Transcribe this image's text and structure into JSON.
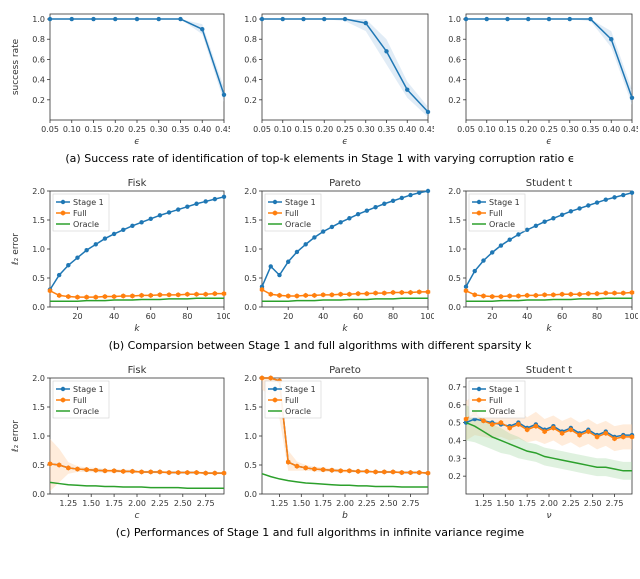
{
  "colors": {
    "line_blue": "#1f77b4",
    "line_orange": "#ff7f0e",
    "line_green": "#2ca02c",
    "fill_blue": "#a8c8e4",
    "fill_orange": "#ffc999",
    "fill_green": "#a3d8a3",
    "axis": "#333333",
    "tick_text": "#333333",
    "bg": "#ffffff"
  },
  "typography": {
    "tick_fontsize": 8,
    "label_fontsize": 9,
    "title_fontsize": 10,
    "caption_fontsize": 11
  },
  "row_a": {
    "caption": "(a) Success rate of identification of top-k elements in Stage 1 with varying corruption ratio ϵ",
    "ylabel": "success rate",
    "xlabel": "ϵ",
    "xlim": [
      0.05,
      0.45
    ],
    "ylim": [
      0.0,
      1.05
    ],
    "xticks": [
      0.05,
      0.1,
      0.15,
      0.2,
      0.25,
      0.3,
      0.35,
      0.4,
      0.45
    ],
    "yticks": [
      0.2,
      0.4,
      0.6,
      0.8,
      1.0
    ],
    "panels": [
      {
        "x": [
          0.05,
          0.1,
          0.15,
          0.2,
          0.25,
          0.3,
          0.35,
          0.4,
          0.45
        ],
        "y": [
          1.0,
          1.0,
          1.0,
          1.0,
          1.0,
          1.0,
          1.0,
          0.9,
          0.25
        ],
        "band_lo": [
          1.0,
          1.0,
          1.0,
          1.0,
          1.0,
          1.0,
          1.0,
          0.85,
          0.18
        ],
        "band_hi": [
          1.0,
          1.0,
          1.0,
          1.0,
          1.0,
          1.0,
          1.0,
          0.95,
          0.32
        ]
      },
      {
        "x": [
          0.05,
          0.1,
          0.15,
          0.2,
          0.25,
          0.3,
          0.35,
          0.4,
          0.45
        ],
        "y": [
          1.0,
          1.0,
          1.0,
          1.0,
          1.0,
          0.96,
          0.68,
          0.3,
          0.08
        ],
        "band_lo": [
          1.0,
          1.0,
          1.0,
          1.0,
          0.98,
          0.88,
          0.55,
          0.22,
          0.03
        ],
        "band_hi": [
          1.0,
          1.0,
          1.0,
          1.0,
          1.0,
          1.0,
          0.8,
          0.38,
          0.13
        ]
      },
      {
        "x": [
          0.05,
          0.1,
          0.15,
          0.2,
          0.25,
          0.3,
          0.35,
          0.4,
          0.45
        ],
        "y": [
          1.0,
          1.0,
          1.0,
          1.0,
          1.0,
          1.0,
          1.0,
          0.8,
          0.22
        ],
        "band_lo": [
          1.0,
          1.0,
          1.0,
          1.0,
          1.0,
          1.0,
          0.98,
          0.72,
          0.15
        ],
        "band_hi": [
          1.0,
          1.0,
          1.0,
          1.0,
          1.0,
          1.0,
          1.0,
          0.88,
          0.3
        ]
      }
    ]
  },
  "row_b": {
    "caption": "(b) Comparsion between Stage 1 and full algorithms with different sparsity k",
    "ylabel": "ℓ₂ error",
    "xlabel": "k",
    "xlim": [
      5,
      100
    ],
    "ylim": [
      0.0,
      2.0
    ],
    "xticks": [
      20,
      40,
      60,
      80,
      100
    ],
    "yticks": [
      0.0,
      0.5,
      1.0,
      1.5,
      2.0
    ],
    "titles": [
      "Fisk",
      "Pareto",
      "Student t"
    ],
    "legend": [
      "Stage 1",
      "Full",
      "Oracle"
    ],
    "panels": [
      {
        "x": [
          5,
          10,
          15,
          20,
          25,
          30,
          35,
          40,
          45,
          50,
          55,
          60,
          65,
          70,
          75,
          80,
          85,
          90,
          95,
          100
        ],
        "stage1": [
          0.3,
          0.55,
          0.72,
          0.85,
          0.98,
          1.08,
          1.18,
          1.26,
          1.33,
          1.4,
          1.46,
          1.52,
          1.58,
          1.63,
          1.68,
          1.73,
          1.78,
          1.82,
          1.86,
          1.9
        ],
        "full": [
          0.28,
          0.2,
          0.18,
          0.17,
          0.17,
          0.17,
          0.18,
          0.18,
          0.19,
          0.19,
          0.2,
          0.2,
          0.21,
          0.21,
          0.21,
          0.22,
          0.22,
          0.22,
          0.23,
          0.23
        ],
        "oracle": [
          0.1,
          0.1,
          0.1,
          0.1,
          0.11,
          0.11,
          0.11,
          0.12,
          0.12,
          0.12,
          0.13,
          0.13,
          0.13,
          0.14,
          0.14,
          0.14,
          0.15,
          0.15,
          0.15,
          0.15
        ]
      },
      {
        "x": [
          5,
          10,
          15,
          20,
          25,
          30,
          35,
          40,
          45,
          50,
          55,
          60,
          65,
          70,
          75,
          80,
          85,
          90,
          95,
          100
        ],
        "stage1": [
          0.35,
          0.7,
          0.55,
          0.78,
          0.95,
          1.08,
          1.2,
          1.3,
          1.38,
          1.46,
          1.53,
          1.6,
          1.66,
          1.72,
          1.78,
          1.83,
          1.88,
          1.93,
          1.97,
          2.0
        ],
        "full": [
          0.3,
          0.22,
          0.2,
          0.19,
          0.19,
          0.2,
          0.2,
          0.21,
          0.21,
          0.22,
          0.22,
          0.23,
          0.23,
          0.24,
          0.24,
          0.25,
          0.25,
          0.25,
          0.26,
          0.26
        ],
        "oracle": [
          0.1,
          0.1,
          0.1,
          0.1,
          0.11,
          0.11,
          0.11,
          0.12,
          0.12,
          0.12,
          0.13,
          0.13,
          0.13,
          0.14,
          0.14,
          0.14,
          0.15,
          0.15,
          0.15,
          0.15
        ]
      },
      {
        "x": [
          5,
          10,
          15,
          20,
          25,
          30,
          35,
          40,
          45,
          50,
          55,
          60,
          65,
          70,
          75,
          80,
          85,
          90,
          95,
          100
        ],
        "stage1": [
          0.35,
          0.62,
          0.8,
          0.94,
          1.06,
          1.16,
          1.25,
          1.33,
          1.4,
          1.47,
          1.53,
          1.59,
          1.65,
          1.7,
          1.75,
          1.8,
          1.85,
          1.89,
          1.93,
          1.97
        ],
        "full": [
          0.28,
          0.21,
          0.19,
          0.18,
          0.18,
          0.19,
          0.19,
          0.2,
          0.2,
          0.21,
          0.21,
          0.22,
          0.22,
          0.22,
          0.23,
          0.23,
          0.24,
          0.24,
          0.24,
          0.25
        ],
        "oracle": [
          0.1,
          0.1,
          0.1,
          0.1,
          0.11,
          0.11,
          0.11,
          0.12,
          0.12,
          0.12,
          0.13,
          0.13,
          0.13,
          0.14,
          0.14,
          0.14,
          0.15,
          0.15,
          0.15,
          0.15
        ]
      }
    ]
  },
  "row_c": {
    "caption": "(c) Performances of Stage 1 and full algorithms in infinite variance regime",
    "ylabel": "ℓ₂ error",
    "titles": [
      "Fisk",
      "Pareto",
      "Student t"
    ],
    "xlabels": [
      "c",
      "b",
      "ν"
    ],
    "legend": [
      "Stage 1",
      "Full",
      "Oracle"
    ],
    "panels": [
      {
        "xlim": [
          1.05,
          2.95
        ],
        "ylim": [
          0.0,
          2.0
        ],
        "xticks": [
          1.25,
          1.5,
          1.75,
          2.0,
          2.25,
          2.5,
          2.75
        ],
        "yticks": [
          0.0,
          0.5,
          1.0,
          1.5,
          2.0
        ],
        "x": [
          1.05,
          1.15,
          1.25,
          1.35,
          1.45,
          1.55,
          1.65,
          1.75,
          1.85,
          1.95,
          2.05,
          2.15,
          2.25,
          2.35,
          2.45,
          2.55,
          2.65,
          2.75,
          2.85,
          2.95
        ],
        "stage1": [
          0.52,
          0.5,
          0.45,
          0.43,
          0.42,
          0.41,
          0.4,
          0.4,
          0.39,
          0.39,
          0.38,
          0.38,
          0.38,
          0.37,
          0.37,
          0.37,
          0.37,
          0.36,
          0.36,
          0.36
        ],
        "full": [
          0.52,
          0.5,
          0.45,
          0.43,
          0.42,
          0.41,
          0.4,
          0.4,
          0.39,
          0.39,
          0.38,
          0.38,
          0.38,
          0.37,
          0.37,
          0.37,
          0.37,
          0.36,
          0.36,
          0.36
        ],
        "oracle": [
          0.2,
          0.18,
          0.16,
          0.15,
          0.14,
          0.14,
          0.13,
          0.13,
          0.12,
          0.12,
          0.12,
          0.11,
          0.11,
          0.11,
          0.11,
          0.1,
          0.1,
          0.1,
          0.1,
          0.1
        ],
        "full_band_lo": [
          0.05,
          0.2,
          0.35,
          0.38,
          0.38,
          0.37,
          0.37,
          0.37,
          0.36,
          0.36,
          0.36,
          0.36,
          0.35,
          0.35,
          0.35,
          0.35,
          0.35,
          0.34,
          0.34,
          0.34
        ],
        "full_band_hi": [
          0.95,
          0.78,
          0.55,
          0.48,
          0.46,
          0.45,
          0.43,
          0.43,
          0.42,
          0.42,
          0.4,
          0.4,
          0.4,
          0.39,
          0.39,
          0.39,
          0.39,
          0.38,
          0.38,
          0.38
        ]
      },
      {
        "xlim": [
          1.05,
          2.95
        ],
        "ylim": [
          0.0,
          2.0
        ],
        "xticks": [
          1.25,
          1.5,
          1.75,
          2.0,
          2.25,
          2.5,
          2.75
        ],
        "yticks": [
          0.0,
          0.5,
          1.0,
          1.5,
          2.0
        ],
        "x": [
          1.05,
          1.15,
          1.25,
          1.35,
          1.45,
          1.55,
          1.65,
          1.75,
          1.85,
          1.95,
          2.05,
          2.15,
          2.25,
          2.35,
          2.45,
          2.55,
          2.65,
          2.75,
          2.85,
          2.95
        ],
        "stage1": [
          2.0,
          2.0,
          1.95,
          0.55,
          0.48,
          0.45,
          0.43,
          0.42,
          0.41,
          0.4,
          0.4,
          0.39,
          0.39,
          0.38,
          0.38,
          0.38,
          0.37,
          0.37,
          0.37,
          0.36
        ],
        "full": [
          2.0,
          2.0,
          1.95,
          0.55,
          0.48,
          0.45,
          0.43,
          0.42,
          0.41,
          0.4,
          0.4,
          0.39,
          0.39,
          0.38,
          0.38,
          0.38,
          0.37,
          0.37,
          0.37,
          0.36
        ],
        "oracle": [
          0.35,
          0.3,
          0.26,
          0.23,
          0.21,
          0.19,
          0.18,
          0.17,
          0.16,
          0.15,
          0.15,
          0.14,
          0.14,
          0.13,
          0.13,
          0.13,
          0.12,
          0.12,
          0.12,
          0.12
        ],
        "full_band_lo": [
          1.8,
          1.7,
          1.3,
          0.4,
          0.4,
          0.4,
          0.39,
          0.38,
          0.38,
          0.37,
          0.37,
          0.37,
          0.37,
          0.36,
          0.36,
          0.36,
          0.35,
          0.35,
          0.35,
          0.34
        ],
        "full_band_hi": [
          2.0,
          2.0,
          2.0,
          0.75,
          0.56,
          0.5,
          0.47,
          0.46,
          0.44,
          0.43,
          0.43,
          0.41,
          0.41,
          0.4,
          0.4,
          0.4,
          0.39,
          0.39,
          0.39,
          0.38
        ]
      },
      {
        "xlim": [
          1.05,
          2.95
        ],
        "ylim": [
          0.1,
          0.75
        ],
        "xticks": [
          1.25,
          1.5,
          1.75,
          2.0,
          2.25,
          2.5,
          2.75
        ],
        "yticks": [
          0.2,
          0.3,
          0.4,
          0.5,
          0.6,
          0.7
        ],
        "x": [
          1.05,
          1.15,
          1.25,
          1.35,
          1.45,
          1.55,
          1.65,
          1.75,
          1.85,
          1.95,
          2.05,
          2.15,
          2.25,
          2.35,
          2.45,
          2.55,
          2.65,
          2.75,
          2.85,
          2.95
        ],
        "stage1": [
          0.5,
          0.52,
          0.51,
          0.5,
          0.49,
          0.48,
          0.5,
          0.47,
          0.49,
          0.46,
          0.48,
          0.45,
          0.47,
          0.44,
          0.46,
          0.43,
          0.45,
          0.42,
          0.43,
          0.43
        ],
        "full": [
          0.52,
          0.55,
          0.51,
          0.49,
          0.5,
          0.47,
          0.49,
          0.46,
          0.48,
          0.45,
          0.47,
          0.44,
          0.46,
          0.43,
          0.45,
          0.42,
          0.44,
          0.41,
          0.42,
          0.42
        ],
        "oracle": [
          0.5,
          0.48,
          0.45,
          0.42,
          0.4,
          0.38,
          0.36,
          0.34,
          0.33,
          0.31,
          0.3,
          0.29,
          0.28,
          0.27,
          0.26,
          0.25,
          0.25,
          0.24,
          0.23,
          0.23
        ],
        "full_band_lo": [
          0.4,
          0.43,
          0.42,
          0.41,
          0.42,
          0.4,
          0.41,
          0.39,
          0.4,
          0.38,
          0.4,
          0.37,
          0.39,
          0.36,
          0.38,
          0.35,
          0.37,
          0.34,
          0.35,
          0.35
        ],
        "full_band_hi": [
          0.62,
          0.66,
          0.6,
          0.57,
          0.58,
          0.54,
          0.57,
          0.53,
          0.56,
          0.52,
          0.54,
          0.51,
          0.53,
          0.5,
          0.52,
          0.49,
          0.51,
          0.48,
          0.49,
          0.49
        ],
        "oracle_band_lo": [
          0.4,
          0.39,
          0.37,
          0.35,
          0.33,
          0.32,
          0.3,
          0.29,
          0.28,
          0.26,
          0.25,
          0.24,
          0.23,
          0.22,
          0.21,
          0.2,
          0.2,
          0.19,
          0.18,
          0.18
        ],
        "oracle_band_hi": [
          0.6,
          0.57,
          0.53,
          0.49,
          0.47,
          0.44,
          0.42,
          0.39,
          0.38,
          0.36,
          0.35,
          0.34,
          0.33,
          0.32,
          0.31,
          0.3,
          0.3,
          0.29,
          0.28,
          0.28
        ]
      }
    ]
  }
}
